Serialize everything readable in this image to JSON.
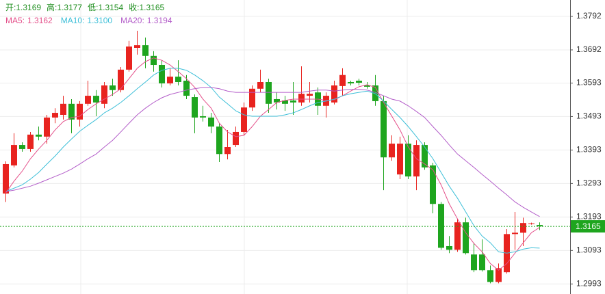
{
  "chart_data": {
    "type": "candlestick",
    "ylim": [
      1.2963,
      1.3841
    ],
    "yticks": [
      1.3792,
      1.3692,
      1.3593,
      1.3493,
      1.3393,
      1.3293,
      1.3193,
      1.3093,
      1.2993
    ],
    "grid": true,
    "up_color": "#e8231f",
    "down_color": "#1ea51e",
    "ohlc_labels": [
      "开:",
      "高:",
      "低:",
      "收:"
    ],
    "open": [
      1.3263,
      1.3347,
      1.3408,
      1.3396,
      1.3439,
      1.3433,
      1.349,
      1.3498,
      1.3531,
      1.3484,
      1.3531,
      1.3555,
      1.3531,
      1.3586,
      1.3572,
      1.3633,
      1.3698,
      1.3706,
      1.3674,
      1.3647,
      1.3592,
      1.3612,
      1.36,
      1.3551,
      1.3494,
      1.349,
      1.3463,
      1.3381,
      1.3408,
      1.3447,
      1.352,
      1.3576,
      1.3596,
      1.3545,
      1.3541,
      1.3541,
      1.3535,
      1.3555,
      1.3565,
      1.3525,
      1.3535,
      1.3584,
      1.3596,
      1.36,
      1.3586,
      1.3586,
      1.3539,
      1.3371,
      1.332,
      1.3412,
      1.3314,
      1.3408,
      1.3347,
      1.3232,
      1.3106,
      1.3095,
      1.3177,
      1.3081,
      1.3081,
      1.3034,
      1.2999,
      1.3028,
      1.3142,
      1.3146,
      1.3172,
      1.3169
    ],
    "high": [
      1.3359,
      1.3443,
      1.3416,
      1.3447,
      1.3463,
      1.3498,
      1.3518,
      1.3555,
      1.3545,
      1.3539,
      1.36,
      1.3572,
      1.3596,
      1.3606,
      1.3641,
      1.3719,
      1.3749,
      1.3729,
      1.3688,
      1.3661,
      1.3637,
      1.3661,
      1.3617,
      1.3559,
      1.3525,
      1.3504,
      1.3473,
      1.3453,
      1.3463,
      1.3535,
      1.3586,
      1.3633,
      1.3606,
      1.3565,
      1.3555,
      1.3596,
      1.3643,
      1.3596,
      1.358,
      1.3565,
      1.36,
      1.3637,
      1.36,
      1.3606,
      1.3596,
      1.3617,
      1.3555,
      1.3437,
      1.3433,
      1.3437,
      1.3422,
      1.3416,
      1.3355,
      1.3238,
      1.3136,
      1.3187,
      1.3191,
      1.3116,
      1.3126,
      1.3048,
      1.3054,
      1.3157,
      1.3208,
      1.3191,
      1.3176,
      1.3177
    ],
    "low": [
      1.3238,
      1.3341,
      1.3388,
      1.3388,
      1.3422,
      1.3412,
      1.3473,
      1.3484,
      1.3443,
      1.3463,
      1.3525,
      1.3494,
      1.3518,
      1.3555,
      1.3565,
      1.3627,
      1.3678,
      1.3637,
      1.3627,
      1.358,
      1.3586,
      1.3586,
      1.3545,
      1.3443,
      1.3478,
      1.3443,
      1.3357,
      1.3365,
      1.3402,
      1.3437,
      1.351,
      1.3565,
      1.3504,
      1.3514,
      1.351,
      1.3498,
      1.3525,
      1.3535,
      1.3498,
      1.349,
      1.3529,
      1.3555,
      1.3586,
      1.3586,
      1.3576,
      1.3525,
      1.3273,
      1.3361,
      1.3306,
      1.3306,
      1.3273,
      1.3334,
      1.3204,
      1.3095,
      1.3085,
      1.3089,
      1.3081,
      1.3028,
      1.303,
      1.2995,
      1.2995,
      1.3024,
      1.3095,
      1.3106,
      1.317,
      1.3154
    ],
    "close": [
      1.3351,
      1.3408,
      1.3396,
      1.3439,
      1.3433,
      1.349,
      1.3504,
      1.3531,
      1.3484,
      1.3531,
      1.3555,
      1.3535,
      1.3586,
      1.3572,
      1.3633,
      1.3702,
      1.3706,
      1.3674,
      1.3647,
      1.3592,
      1.3612,
      1.3596,
      1.3555,
      1.349,
      1.349,
      1.3463,
      1.3381,
      1.3402,
      1.3447,
      1.352,
      1.3576,
      1.3596,
      1.3531,
      1.3535,
      1.3531,
      1.3535,
      1.3561,
      1.3561,
      1.3525,
      1.3555,
      1.3586,
      1.3617,
      1.3592,
      1.3594,
      1.3582,
      1.3539,
      1.3371,
      1.3412,
      1.3412,
      1.3314,
      1.3408,
      1.3341,
      1.3232,
      1.3101,
      1.3095,
      1.3177,
      1.3085,
      1.3034,
      1.3034,
      1.2999,
      1.304,
      1.3142,
      1.3146,
      1.3175,
      1.3174,
      1.3165
    ],
    "series": [
      {
        "name": "MA5:",
        "color": "#e4508a",
        "last_label": "1.3162",
        "values": [
          1.3265,
          1.33,
          1.333,
          1.3367,
          1.3396,
          1.3422,
          1.3453,
          1.3478,
          1.349,
          1.3494,
          1.3514,
          1.3531,
          1.3545,
          1.3559,
          1.3576,
          1.3606,
          1.3637,
          1.3657,
          1.3668,
          1.3661,
          1.3647,
          1.3627,
          1.3606,
          1.358,
          1.3545,
          1.3518,
          1.3473,
          1.3447,
          1.3433,
          1.3437,
          1.3463,
          1.3494,
          1.3514,
          1.3535,
          1.3541,
          1.3545,
          1.3545,
          1.3545,
          1.3545,
          1.3541,
          1.3543,
          1.3555,
          1.3569,
          1.3582,
          1.3588,
          1.358,
          1.3535,
          1.3494,
          1.3453,
          1.3402,
          1.3367,
          1.3351,
          1.3334,
          1.3289,
          1.3232,
          1.3187,
          1.3146,
          1.3114,
          1.3089,
          1.3054,
          1.3034,
          1.3054,
          1.3085,
          1.3116,
          1.3146,
          1.3162
        ]
      },
      {
        "name": "MA10:",
        "color": "#3dbfd8",
        "last_label": "1.3100",
        "values": [
          1.3269,
          1.3279,
          1.3289,
          1.3306,
          1.3326,
          1.3351,
          1.3375,
          1.3402,
          1.3426,
          1.3449,
          1.3467,
          1.3484,
          1.3504,
          1.3518,
          1.3535,
          1.3555,
          1.3576,
          1.3596,
          1.3617,
          1.3631,
          1.3637,
          1.3637,
          1.3631,
          1.3617,
          1.36,
          1.358,
          1.3551,
          1.3531,
          1.351,
          1.3498,
          1.3494,
          1.3494,
          1.3494,
          1.3494,
          1.3498,
          1.3504,
          1.3514,
          1.3525,
          1.3535,
          1.3539,
          1.3545,
          1.3555,
          1.3561,
          1.3565,
          1.3569,
          1.3561,
          1.3539,
          1.3514,
          1.349,
          1.3463,
          1.3433,
          1.3402,
          1.3367,
          1.3326,
          1.3285,
          1.3249,
          1.3208,
          1.3167,
          1.3136,
          1.3116,
          1.3089,
          1.3085,
          1.3089,
          1.3097,
          1.3101,
          1.31
        ]
      },
      {
        "name": "MA20:",
        "color": "#b35dc9",
        "last_label": "1.3194",
        "values": [
          1.3269,
          1.3273,
          1.3279,
          1.3285,
          1.3294,
          1.3304,
          1.3314,
          1.3324,
          1.3336,
          1.3351,
          1.3367,
          1.3381,
          1.3402,
          1.3422,
          1.3447,
          1.3473,
          1.3498,
          1.3518,
          1.3535,
          1.3549,
          1.3559,
          1.3565,
          1.3572,
          1.3576,
          1.358,
          1.358,
          1.3576,
          1.3569,
          1.3565,
          1.3565,
          1.3565,
          1.3565,
          1.3565,
          1.3565,
          1.3565,
          1.3565,
          1.3565,
          1.3569,
          1.3572,
          1.3572,
          1.3569,
          1.3572,
          1.3574,
          1.3574,
          1.3572,
          1.3565,
          1.3555,
          1.3545,
          1.3539,
          1.3525,
          1.3508,
          1.349,
          1.3463,
          1.3437,
          1.3408,
          1.3381,
          1.3361,
          1.3341,
          1.332,
          1.33,
          1.3279,
          1.3259,
          1.3238,
          1.3222,
          1.3208,
          1.3194
        ]
      }
    ],
    "last_price": {
      "value": 1.3165,
      "label": "1.3165"
    }
  }
}
